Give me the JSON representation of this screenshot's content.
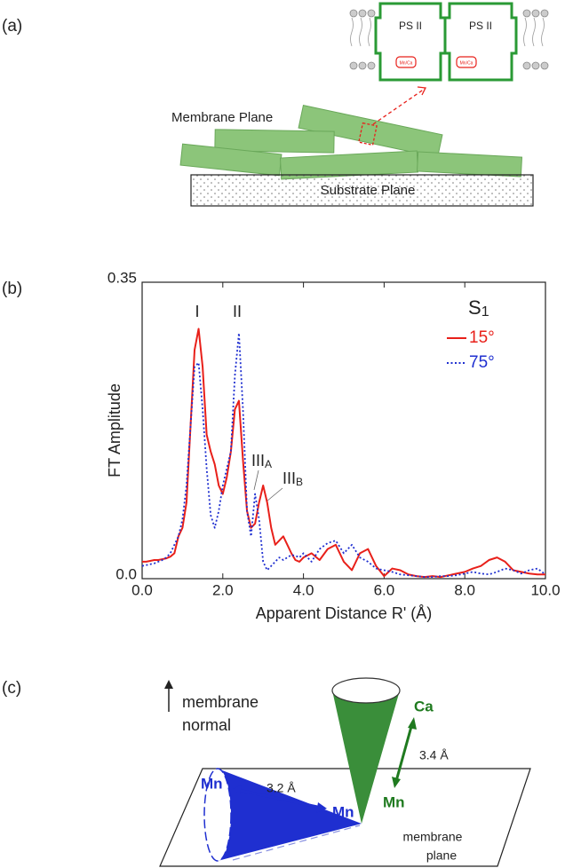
{
  "panel_labels": [
    "(a)",
    "(b)",
    "(c)"
  ],
  "diagram_a": {
    "protein_labels": [
      "PS II",
      "PS II"
    ],
    "cluster_labels": [
      "Mn/Ca",
      "Mn/Ca"
    ],
    "membrane_label": "Membrane Plane",
    "substrate_label": "Substrate Plane"
  },
  "chart_data": {
    "type": "line",
    "xlabel": "Apparent Distance R' (Å)",
    "ylabel": "FT Amplitude",
    "legend_title": {
      "text": "S",
      "sub": "1"
    },
    "annotations": [
      {
        "text": "I"
      },
      {
        "text": "II"
      },
      {
        "text": "III",
        "sub": "A"
      },
      {
        "text": "III",
        "sub": "B"
      }
    ],
    "x": [
      0,
      0.1,
      0.2,
      0.3,
      0.4,
      0.5,
      0.6,
      0.7,
      0.8,
      0.9,
      1.0,
      1.1,
      1.2,
      1.3,
      1.4,
      1.5,
      1.6,
      1.7,
      1.8,
      1.9,
      2.0,
      2.1,
      2.2,
      2.3,
      2.4,
      2.5,
      2.6,
      2.7,
      2.8,
      2.9,
      3.0,
      3.1,
      3.2,
      3.3,
      3.4,
      3.5,
      3.6,
      3.7,
      3.8,
      3.9,
      4.0,
      4.2,
      4.4,
      4.6,
      4.8,
      5.0,
      5.2,
      5.4,
      5.6,
      5.8,
      6.0,
      6.2,
      6.4,
      6.6,
      6.8,
      7.0,
      7.2,
      7.4,
      7.6,
      7.8,
      8.0,
      8.2,
      8.4,
      8.6,
      8.8,
      9.0,
      9.2,
      9.4,
      9.6,
      9.8,
      10.0
    ],
    "series": [
      {
        "name": "15°",
        "color": "#e8201a",
        "dash": "solid",
        "values": [
          0.02,
          0.02,
          0.021,
          0.022,
          0.022,
          0.023,
          0.024,
          0.026,
          0.03,
          0.05,
          0.06,
          0.09,
          0.18,
          0.27,
          0.295,
          0.25,
          0.17,
          0.15,
          0.135,
          0.11,
          0.1,
          0.12,
          0.15,
          0.2,
          0.21,
          0.14,
          0.08,
          0.06,
          0.065,
          0.09,
          0.11,
          0.09,
          0.06,
          0.04,
          0.045,
          0.05,
          0.04,
          0.03,
          0.022,
          0.02,
          0.025,
          0.03,
          0.022,
          0.035,
          0.04,
          0.02,
          0.01,
          0.03,
          0.035,
          0.015,
          0.003,
          0.012,
          0.01,
          0.005,
          0.003,
          0.002,
          0.003,
          0.002,
          0.004,
          0.006,
          0.008,
          0.012,
          0.015,
          0.022,
          0.025,
          0.02,
          0.01,
          0.008,
          0.006,
          0.005,
          0.005
        ]
      },
      {
        "name": "75°",
        "color": "#1f2fd0",
        "dash": "dotted",
        "values": [
          0.015,
          0.016,
          0.017,
          0.018,
          0.02,
          0.022,
          0.025,
          0.03,
          0.04,
          0.05,
          0.07,
          0.11,
          0.18,
          0.25,
          0.255,
          0.2,
          0.13,
          0.075,
          0.06,
          0.08,
          0.11,
          0.13,
          0.15,
          0.24,
          0.29,
          0.2,
          0.08,
          0.05,
          0.1,
          0.07,
          0.02,
          0.01,
          0.015,
          0.02,
          0.025,
          0.022,
          0.025,
          0.028,
          0.027,
          0.025,
          0.03,
          0.02,
          0.035,
          0.042,
          0.045,
          0.03,
          0.04,
          0.025,
          0.02,
          0.012,
          0.01,
          0.008,
          0.005,
          0.004,
          0.003,
          0.002,
          0.002,
          0.003,
          0.003,
          0.004,
          0.006,
          0.008,
          0.006,
          0.005,
          0.008,
          0.012,
          0.01,
          0.006,
          0.01,
          0.012,
          0.005
        ]
      }
    ],
    "xlim": [
      0,
      10
    ],
    "ylim": [
      0,
      0.35
    ],
    "xticks": [
      {
        "value": 0,
        "label": "0.0"
      },
      {
        "value": 2,
        "label": "2.0"
      },
      {
        "value": 4,
        "label": "4.0"
      },
      {
        "value": 6,
        "label": "6.0"
      },
      {
        "value": 8,
        "label": "8.0"
      },
      {
        "value": 10,
        "label": "10.0"
      }
    ],
    "yticks": [
      {
        "value": 0,
        "label": "0.0"
      },
      0.35
    ],
    "grid": false
  },
  "diagram_c": {
    "normal_label": [
      "membrane",
      "normal"
    ],
    "plane_label": [
      "membrane",
      "plane"
    ],
    "atoms": [
      "Ca",
      "Mn",
      "Mn",
      "Mn"
    ],
    "distances": [
      "3.4 Å",
      "3.2 Å"
    ]
  }
}
